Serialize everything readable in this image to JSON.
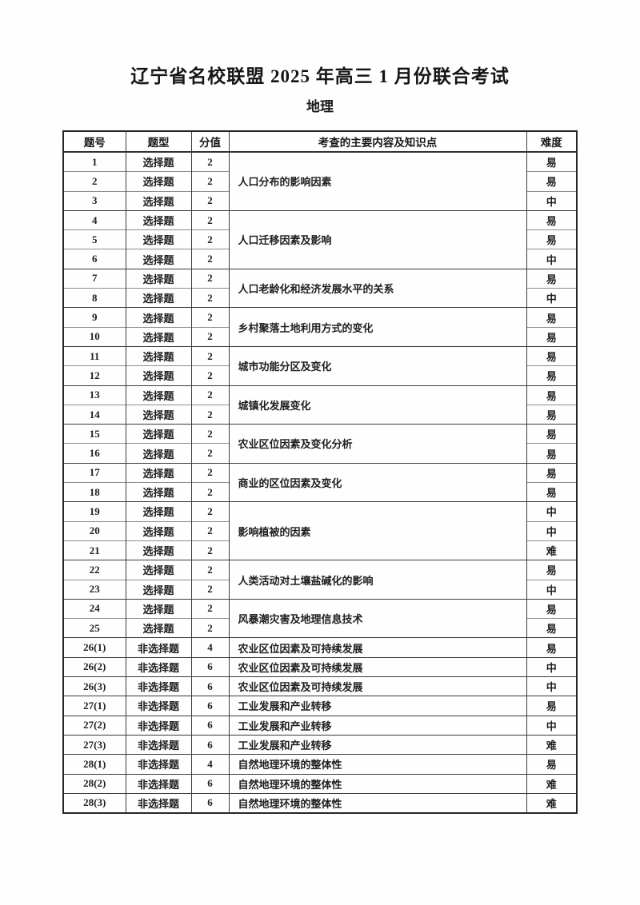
{
  "page": {
    "title": "辽宁省名校联盟 2025 年高三 1 月份联合考试",
    "subtitle": "地理"
  },
  "table": {
    "headers": {
      "question_no": "题号",
      "question_type": "题型",
      "score": "分值",
      "content": "考查的主要内容及知识点",
      "difficulty": "难度"
    },
    "groups": [
      {
        "content": "人口分布的影响因素",
        "rows": [
          {
            "no": "1",
            "type": "选择题",
            "score": "2",
            "difficulty": "易"
          },
          {
            "no": "2",
            "type": "选择题",
            "score": "2",
            "difficulty": "易"
          },
          {
            "no": "3",
            "type": "选择题",
            "score": "2",
            "difficulty": "中"
          }
        ]
      },
      {
        "content": "人口迁移因素及影响",
        "rows": [
          {
            "no": "4",
            "type": "选择题",
            "score": "2",
            "difficulty": "易"
          },
          {
            "no": "5",
            "type": "选择题",
            "score": "2",
            "difficulty": "易"
          },
          {
            "no": "6",
            "type": "选择题",
            "score": "2",
            "difficulty": "中"
          }
        ]
      },
      {
        "content": "人口老龄化和经济发展水平的关系",
        "rows": [
          {
            "no": "7",
            "type": "选择题",
            "score": "2",
            "difficulty": "易"
          },
          {
            "no": "8",
            "type": "选择题",
            "score": "2",
            "difficulty": "中"
          }
        ]
      },
      {
        "content": "乡村聚落土地利用方式的变化",
        "rows": [
          {
            "no": "9",
            "type": "选择题",
            "score": "2",
            "difficulty": "易"
          },
          {
            "no": "10",
            "type": "选择题",
            "score": "2",
            "difficulty": "易"
          }
        ]
      },
      {
        "content": "城市功能分区及变化",
        "rows": [
          {
            "no": "11",
            "type": "选择题",
            "score": "2",
            "difficulty": "易"
          },
          {
            "no": "12",
            "type": "选择题",
            "score": "2",
            "difficulty": "易"
          }
        ]
      },
      {
        "content": "城镇化发展变化",
        "rows": [
          {
            "no": "13",
            "type": "选择题",
            "score": "2",
            "difficulty": "易"
          },
          {
            "no": "14",
            "type": "选择题",
            "score": "2",
            "difficulty": "易"
          }
        ]
      },
      {
        "content": "农业区位因素及变化分析",
        "rows": [
          {
            "no": "15",
            "type": "选择题",
            "score": "2",
            "difficulty": "易"
          },
          {
            "no": "16",
            "type": "选择题",
            "score": "2",
            "difficulty": "易"
          }
        ]
      },
      {
        "content": "商业的区位因素及变化",
        "rows": [
          {
            "no": "17",
            "type": "选择题",
            "score": "2",
            "difficulty": "易"
          },
          {
            "no": "18",
            "type": "选择题",
            "score": "2",
            "difficulty": "易"
          }
        ]
      },
      {
        "content": "影响植被的因素",
        "rows": [
          {
            "no": "19",
            "type": "选择题",
            "score": "2",
            "difficulty": "中"
          },
          {
            "no": "20",
            "type": "选择题",
            "score": "2",
            "difficulty": "中"
          },
          {
            "no": "21",
            "type": "选择题",
            "score": "2",
            "difficulty": "难"
          }
        ]
      },
      {
        "content": "人类活动对土壤盐碱化的影响",
        "rows": [
          {
            "no": "22",
            "type": "选择题",
            "score": "2",
            "difficulty": "易"
          },
          {
            "no": "23",
            "type": "选择题",
            "score": "2",
            "difficulty": "中"
          }
        ]
      },
      {
        "content": "风暴潮灾害及地理信息技术",
        "rows": [
          {
            "no": "24",
            "type": "选择题",
            "score": "2",
            "difficulty": "易"
          },
          {
            "no": "25",
            "type": "选择题",
            "score": "2",
            "difficulty": "易"
          }
        ]
      },
      {
        "content": "农业区位因素及可持续发展",
        "rows": [
          {
            "no": "26(1)",
            "type": "非选择题",
            "score": "4",
            "difficulty": "易"
          }
        ]
      },
      {
        "content": "农业区位因素及可持续发展",
        "rows": [
          {
            "no": "26(2)",
            "type": "非选择题",
            "score": "6",
            "difficulty": "中"
          }
        ]
      },
      {
        "content": "农业区位因素及可持续发展",
        "rows": [
          {
            "no": "26(3)",
            "type": "非选择题",
            "score": "6",
            "difficulty": "中"
          }
        ]
      },
      {
        "content": "工业发展和产业转移",
        "rows": [
          {
            "no": "27(1)",
            "type": "非选择题",
            "score": "6",
            "difficulty": "易"
          }
        ]
      },
      {
        "content": "工业发展和产业转移",
        "rows": [
          {
            "no": "27(2)",
            "type": "非选择题",
            "score": "6",
            "difficulty": "中"
          }
        ]
      },
      {
        "content": "工业发展和产业转移",
        "rows": [
          {
            "no": "27(3)",
            "type": "非选择题",
            "score": "6",
            "difficulty": "难"
          }
        ]
      },
      {
        "content": "自然地理环境的整体性",
        "rows": [
          {
            "no": "28(1)",
            "type": "非选择题",
            "score": "4",
            "difficulty": "易"
          }
        ]
      },
      {
        "content": "自然地理环境的整体性",
        "rows": [
          {
            "no": "28(2)",
            "type": "非选择题",
            "score": "6",
            "difficulty": "难"
          }
        ]
      },
      {
        "content": "自然地理环境的整体性",
        "rows": [
          {
            "no": "28(3)",
            "type": "非选择题",
            "score": "6",
            "difficulty": "难"
          }
        ]
      }
    ]
  }
}
